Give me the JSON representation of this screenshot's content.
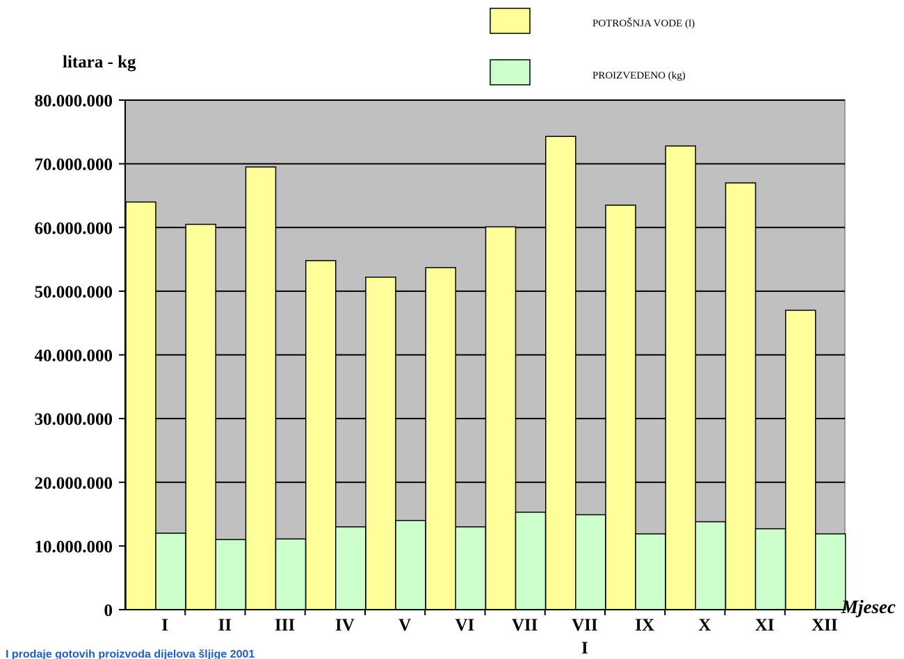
{
  "chart_data": {
    "type": "bar",
    "ylabel": "litara - kg",
    "xlabel": "Mjesec",
    "categories": [
      "I",
      "II",
      "III",
      "IV",
      "V",
      "VI",
      "VII",
      "VII\nI",
      "IX",
      "X",
      "XI",
      "XII"
    ],
    "series": [
      {
        "name": "POTROŠNJA VODE (l)",
        "color": "#ffff99",
        "values": [
          64000000,
          60500000,
          69500000,
          54800000,
          52200000,
          53700000,
          60100000,
          74300000,
          63500000,
          72800000,
          67000000,
          47000000
        ]
      },
      {
        "name": "PROIZVEDENO (kg)",
        "color": "#ccffcc",
        "values": [
          12000000,
          11000000,
          11100000,
          13000000,
          14000000,
          13000000,
          15300000,
          14900000,
          11900000,
          13800000,
          12700000,
          11900000
        ]
      }
    ],
    "ylim": [
      0,
      80000000
    ],
    "yticks": [
      "0",
      "10.000.000",
      "20.000.000",
      "30.000.000",
      "40.000.000",
      "50.000.000",
      "60.000.000",
      "70.000.000",
      "80.000.000"
    ],
    "grid": true,
    "plot_background": "#c0c0c0",
    "legend": "top-right"
  },
  "footer_text": "I prodaje gotovih proizvoda dijelova šljige 2001"
}
